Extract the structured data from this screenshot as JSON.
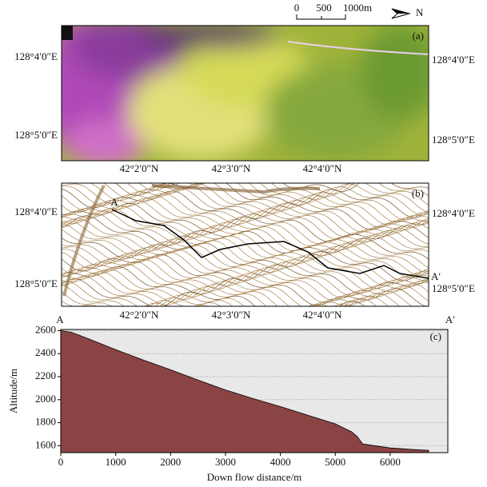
{
  "scale_bar": {
    "labels": [
      "0",
      "500",
      "1000m"
    ],
    "north": "N"
  },
  "panel_a": {
    "label": "(a)",
    "left_labels": [
      "128°4′0″E",
      "128°5′0″E"
    ],
    "right_labels": [
      "128°4′0″E",
      "128°5′0″E"
    ],
    "bottom_labels": [
      "42°2′0″N",
      "42°3′0″N",
      "42°4′0″N"
    ]
  },
  "panel_b": {
    "label": "(b)",
    "left_labels": [
      "128°4′0″E",
      "128°5′0″E"
    ],
    "right_labels": [
      "128°4′0″E",
      "128°5′0″E"
    ],
    "bottom_labels": [
      "42°2′0″N",
      "42°3′0″N",
      "42°4′0″N"
    ],
    "start": "A",
    "end": "A′"
  },
  "chart_data": {
    "type": "area",
    "label": "(c)",
    "start": "A",
    "end": "A′",
    "x_label": "Down flow distance/m",
    "y_label": "Altitude/m",
    "x": [
      0,
      200,
      500,
      1000,
      1500,
      2000,
      2500,
      3000,
      3500,
      4000,
      4500,
      5000,
      5300,
      5400,
      5500,
      6000,
      6500,
      6700
    ],
    "values": [
      2600,
      2585,
      2530,
      2435,
      2345,
      2260,
      2170,
      2085,
      2010,
      1940,
      1865,
      1790,
      1720,
      1680,
      1615,
      1580,
      1565,
      1560
    ],
    "color": "#8b4444",
    "xlim": [
      0,
      7050
    ],
    "ylim": [
      1540,
      2610
    ],
    "xticks": [
      0,
      1000,
      2000,
      3000,
      4000,
      5000,
      6000
    ],
    "yticks": [
      1600,
      1800,
      2000,
      2200,
      2400,
      2600
    ],
    "grid": true
  }
}
